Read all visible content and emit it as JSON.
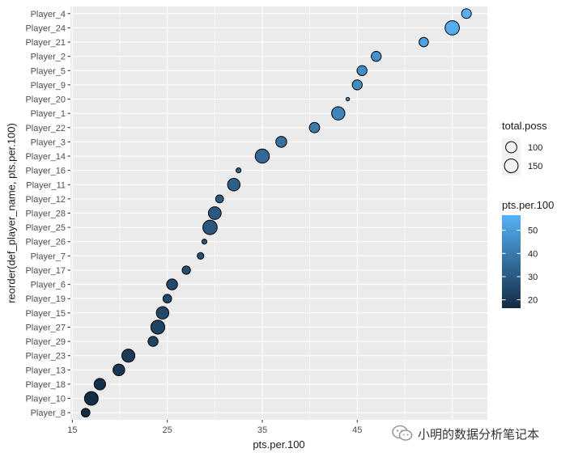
{
  "chart_data": {
    "type": "scatter",
    "xlabel": "pts.per.100",
    "ylabel": "reorder(def_player_name, pts.per.100)",
    "xlim": [
      14.8,
      58.7
    ],
    "x_ticks": [
      15,
      25,
      35,
      45
    ],
    "grid": true,
    "points": [
      {
        "player": "Player_8",
        "pts_per_100": 16.4,
        "total_poss": 60
      },
      {
        "player": "Player_10",
        "pts_per_100": 17.0,
        "total_poss": 150
      },
      {
        "player": "Player_18",
        "pts_per_100": 17.9,
        "total_poss": 105
      },
      {
        "player": "Player_13",
        "pts_per_100": 19.9,
        "total_poss": 110
      },
      {
        "player": "Player_23",
        "pts_per_100": 20.9,
        "total_poss": 135
      },
      {
        "player": "Player_29",
        "pts_per_100": 23.5,
        "total_poss": 80
      },
      {
        "player": "Player_27",
        "pts_per_100": 24.0,
        "total_poss": 155
      },
      {
        "player": "Player_15",
        "pts_per_100": 24.5,
        "total_poss": 125
      },
      {
        "player": "Player_19",
        "pts_per_100": 25.0,
        "total_poss": 60
      },
      {
        "player": "Player_6",
        "pts_per_100": 25.5,
        "total_poss": 95
      },
      {
        "player": "Player_17",
        "pts_per_100": 27.0,
        "total_poss": 55
      },
      {
        "player": "Player_7",
        "pts_per_100": 28.5,
        "total_poss": 35
      },
      {
        "player": "Player_26",
        "pts_per_100": 28.9,
        "total_poss": 20
      },
      {
        "player": "Player_25",
        "pts_per_100": 29.5,
        "total_poss": 165
      },
      {
        "player": "Player_28",
        "pts_per_100": 30.0,
        "total_poss": 130
      },
      {
        "player": "Player_12",
        "pts_per_100": 30.5,
        "total_poss": 50
      },
      {
        "player": "Player_11",
        "pts_per_100": 32.0,
        "total_poss": 125
      },
      {
        "player": "Player_16",
        "pts_per_100": 32.5,
        "total_poss": 20
      },
      {
        "player": "Player_14",
        "pts_per_100": 35.0,
        "total_poss": 160
      },
      {
        "player": "Player_3",
        "pts_per_100": 37.0,
        "total_poss": 95
      },
      {
        "player": "Player_22",
        "pts_per_100": 40.5,
        "total_poss": 85
      },
      {
        "player": "Player_1",
        "pts_per_100": 43.0,
        "total_poss": 140
      },
      {
        "player": "Player_20",
        "pts_per_100": 44.0,
        "total_poss": 10
      },
      {
        "player": "Player_9",
        "pts_per_100": 45.0,
        "total_poss": 80
      },
      {
        "player": "Player_5",
        "pts_per_100": 45.5,
        "total_poss": 80
      },
      {
        "player": "Player_2",
        "pts_per_100": 47.0,
        "total_poss": 80
      },
      {
        "player": "Player_21",
        "pts_per_100": 52.0,
        "total_poss": 70
      },
      {
        "player": "Player_24",
        "pts_per_100": 55.0,
        "total_poss": 165
      },
      {
        "player": "Player_4",
        "pts_per_100": 56.5,
        "total_poss": 75
      }
    ],
    "size_legend": {
      "title": "total.poss",
      "breaks": [
        100,
        150
      ]
    },
    "color_legend": {
      "title": "pts.per.100",
      "breaks": [
        20,
        30,
        40,
        50
      ],
      "range": [
        16.4,
        56.5
      ],
      "low_color": "#132B43",
      "high_color": "#56B1F7"
    },
    "panel_background": "#EBEBEB",
    "watermark": "小明的数据分析笔记本"
  }
}
